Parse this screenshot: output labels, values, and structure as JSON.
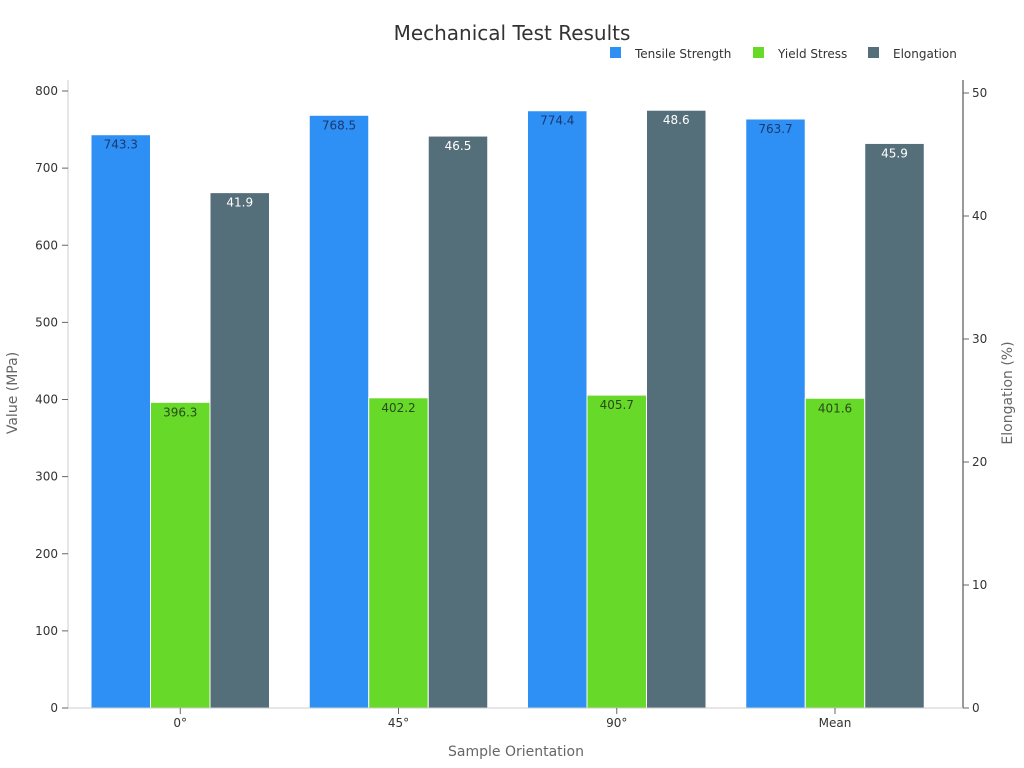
{
  "chart_data": {
    "type": "bar",
    "title": "Mechanical Test Results",
    "xlabel": "Sample Orientation",
    "ylabel": "Value (MPa)",
    "y2label": "Elongation (%)",
    "categories": [
      "0°",
      "45°",
      "90°",
      "Mean"
    ],
    "ylim": [
      0,
      800
    ],
    "y2lim": [
      0,
      50
    ],
    "yticks": [
      0,
      100,
      200,
      300,
      400,
      500,
      600,
      700,
      800
    ],
    "y2ticks": [
      0,
      10,
      20,
      30,
      40,
      50
    ],
    "legend_position": "top-right",
    "grid": false,
    "series": [
      {
        "name": "Tensile Strength",
        "axis": "left",
        "color": "#2e8ff5",
        "label_color": "#1a3a6e",
        "values": [
          743.3,
          768.5,
          774.4,
          763.7
        ],
        "labels": [
          "743.3",
          "768.5",
          "774.4",
          "763.7"
        ]
      },
      {
        "name": "Yield Stress",
        "axis": "left",
        "color": "#67d928",
        "label_color": "#2a4a1a",
        "values": [
          396.3,
          402.2,
          405.7,
          401.6
        ],
        "labels": [
          "396.3",
          "402.2",
          "405.7",
          "401.6"
        ]
      },
      {
        "name": "Elongation",
        "axis": "right",
        "color": "#546e7a",
        "label_color": "#ffffff",
        "values": [
          41.9,
          46.5,
          48.6,
          45.9
        ],
        "labels": [
          "41.9",
          "46.5",
          "48.6",
          "45.9"
        ]
      }
    ]
  }
}
